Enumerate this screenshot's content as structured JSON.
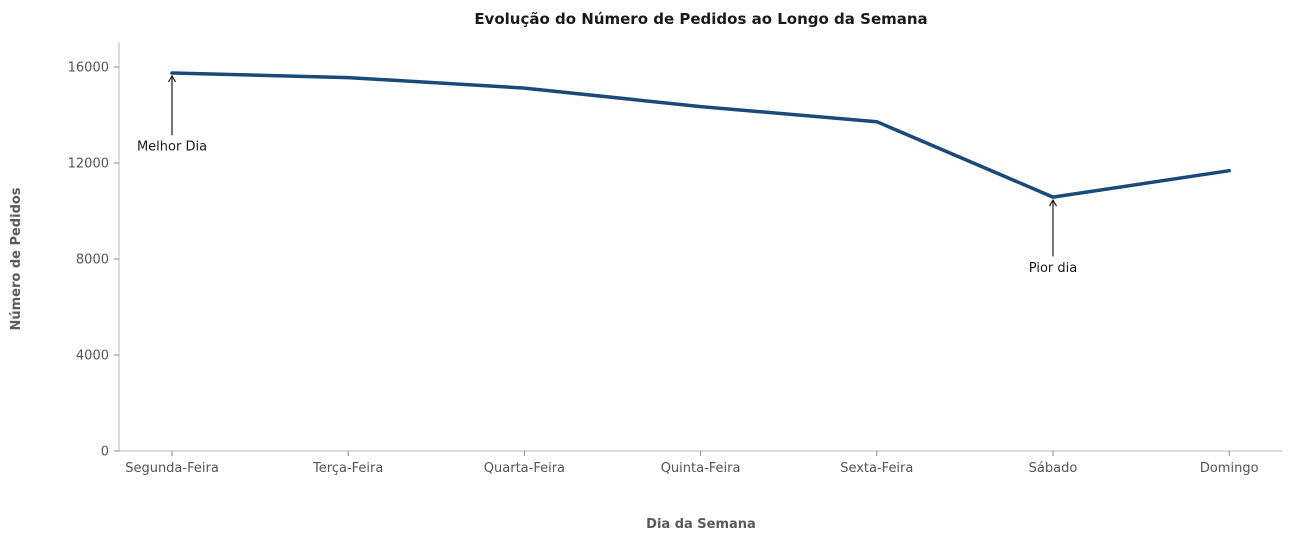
{
  "chart_data": {
    "type": "line",
    "title": "Evolução do Número de Pedidos ao Longo da Semana",
    "xlabel": "Dia da Semana",
    "ylabel": "Número de Pedidos",
    "categories": [
      "Segunda-Feira",
      "Terça-Feira",
      "Quarta-Feira",
      "Quinta-Feira",
      "Sexta-Feira",
      "Sábado",
      "Domingo"
    ],
    "series": [
      {
        "values": [
          15750,
          15560,
          15120,
          14350,
          13720,
          10580,
          11680
        ],
        "color": "#1a4a7a"
      }
    ],
    "ylim": [
      0,
      16000
    ],
    "yticks": [
      0,
      4000,
      8000,
      12000,
      16000
    ],
    "grid": false,
    "annotations": [
      {
        "text": "Melhor Dia",
        "category": "Segunda-Feira",
        "value": 15750,
        "text_value": 12700
      },
      {
        "text": "Pior dia",
        "category": "Sábado",
        "value": 10580,
        "text_value": 7650
      }
    ]
  }
}
